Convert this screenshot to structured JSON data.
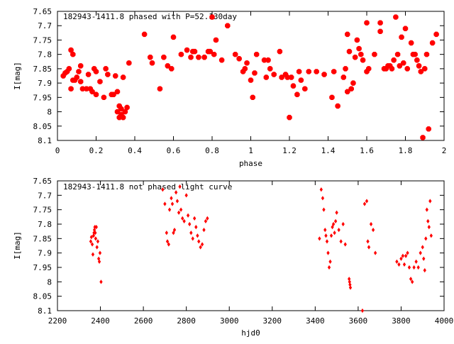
{
  "colors": {
    "points": "#ff0000",
    "axes": "#000000",
    "background": "#ffffff"
  },
  "chart_data": [
    {
      "type": "scatter",
      "title": "182943-1411.8 phased with P=52.130day",
      "xlabel": "phase",
      "ylabel": "I[mag]",
      "xlim": [
        0,
        2
      ],
      "ylim": [
        8.1,
        7.65
      ],
      "y_inverted": true,
      "grid": false,
      "marker": "star",
      "xticks": [
        "0",
        "0.2",
        "0.4",
        "0.6",
        "0.8",
        "1",
        "1.2",
        "1.4",
        "1.6",
        "1.8",
        "2"
      ],
      "yticks": [
        "7.65",
        "7.7",
        "7.75",
        "7.8",
        "7.85",
        "7.9",
        "7.95",
        "8",
        "8.05",
        "8.1"
      ],
      "series": [
        {
          "x": [
            0.03,
            0.04,
            0.05,
            0.06,
            0.07,
            0.07,
            0.08,
            0.08,
            0.09,
            0.1,
            0.11,
            0.12,
            0.12,
            0.13,
            0.15,
            0.16,
            0.17,
            0.18,
            0.19,
            0.2,
            0.2,
            0.22,
            0.24,
            0.25,
            0.26,
            0.28,
            0.29,
            0.3,
            0.31,
            0.31,
            0.32,
            0.32,
            0.33,
            0.33,
            0.34,
            0.34,
            0.35,
            0.36,
            0.37,
            0.45,
            0.48,
            0.49,
            0.53,
            0.55,
            0.57,
            0.59,
            0.6,
            0.64,
            0.67,
            0.69,
            0.7,
            0.71,
            0.73,
            0.76,
            0.78,
            0.79,
            0.8,
            0.81,
            0.82,
            0.85,
            0.88,
            0.92,
            0.94,
            0.96,
            0.97,
            0.98,
            1.0,
            1.01,
            1.02,
            1.03,
            1.07,
            1.08,
            1.09,
            1.1,
            1.12,
            1.15,
            1.16,
            1.18,
            1.19,
            1.2,
            1.21,
            1.22,
            1.24,
            1.25,
            1.26,
            1.28,
            1.3,
            1.34,
            1.38,
            1.42,
            1.43,
            1.45,
            1.48,
            1.49,
            1.5,
            1.5,
            1.51,
            1.52,
            1.53,
            1.54,
            1.55,
            1.56,
            1.57,
            1.58,
            1.6,
            1.6,
            1.61,
            1.64,
            1.67,
            1.67,
            1.69,
            1.7,
            1.71,
            1.72,
            1.73,
            1.74,
            1.75,
            1.76,
            1.77,
            1.78,
            1.79,
            1.8,
            1.81,
            1.83,
            1.84,
            1.85,
            1.86,
            1.87,
            1.88,
            1.89,
            1.9,
            1.91,
            1.92,
            1.94,
            1.96
          ],
          "y": [
            7.875,
            7.865,
            7.86,
            7.85,
            7.92,
            7.785,
            7.8,
            7.89,
            7.89,
            7.88,
            7.86,
            7.84,
            7.895,
            7.92,
            7.92,
            7.87,
            7.92,
            7.93,
            7.85,
            7.86,
            7.94,
            7.895,
            7.95,
            7.85,
            7.87,
            7.94,
            7.94,
            7.875,
            7.93,
            8.0,
            7.98,
            8.02,
            7.99,
            8.01,
            7.88,
            8.02,
            8.0,
            7.985,
            7.83,
            7.73,
            7.81,
            7.83,
            7.92,
            7.81,
            7.84,
            7.85,
            7.74,
            7.8,
            7.785,
            7.81,
            7.79,
            7.79,
            7.81,
            7.81,
            7.79,
            7.79,
            7.67,
            7.8,
            7.75,
            7.82,
            7.7,
            7.8,
            7.815,
            7.86,
            7.85,
            7.83,
            7.89,
            7.95,
            7.865,
            7.8,
            7.82,
            7.88,
            7.82,
            7.85,
            7.87,
            7.79,
            7.88,
            7.87,
            7.88,
            8.02,
            7.88,
            7.91,
            7.94,
            7.86,
            7.89,
            7.92,
            7.86,
            7.86,
            7.87,
            7.95,
            7.86,
            7.98,
            7.88,
            7.85,
            7.93,
            7.73,
            7.79,
            7.92,
            7.9,
            7.81,
            7.75,
            7.78,
            7.8,
            7.82,
            7.69,
            7.86,
            7.85,
            7.8,
            7.72,
            7.69,
            7.85,
            7.85,
            7.84,
            7.84,
            7.85,
            7.82,
            7.67,
            7.8,
            7.84,
            7.74,
            7.83,
            7.71,
            7.85,
            7.76,
            7.8,
            7.8,
            7.82,
            7.84,
            7.86,
            8.09,
            7.85,
            7.8,
            8.06,
            7.76,
            7.73
          ]
        }
      ]
    },
    {
      "type": "scatter",
      "title": "182943-1411.8 not phased light curve",
      "xlabel": "hjd0",
      "ylabel": "I[mag]",
      "xlim": [
        2200,
        4000
      ],
      "ylim": [
        8.1,
        7.65
      ],
      "y_inverted": true,
      "grid": false,
      "marker": "diamond",
      "xticks": [
        "2200",
        "2400",
        "2600",
        "2800",
        "3000",
        "3200",
        "3400",
        "3600",
        "3800",
        "4000"
      ],
      "yticks": [
        "7.65",
        "7.7",
        "7.75",
        "7.8",
        "7.85",
        "7.9",
        "7.95",
        "8",
        "8.05",
        "8.1"
      ],
      "series": [
        {
          "x": [
            2355,
            2358,
            2362,
            2365,
            2368,
            2370,
            2372,
            2374,
            2376,
            2378,
            2381,
            2384,
            2388,
            2392,
            2395,
            2398,
            2403,
            2690,
            2700,
            2708,
            2712,
            2718,
            2722,
            2730,
            2735,
            2740,
            2745,
            2752,
            2758,
            2765,
            2770,
            2775,
            2782,
            2790,
            2800,
            2808,
            2815,
            2822,
            2830,
            2838,
            2845,
            2852,
            2858,
            2866,
            2874,
            2882,
            2890,
            2898,
            3420,
            3428,
            3435,
            3440,
            3446,
            3450,
            3455,
            3460,
            3465,
            3470,
            3475,
            3480,
            3485,
            3490,
            3495,
            3500,
            3510,
            3520,
            3530,
            3540,
            3558,
            3560,
            3562,
            3564,
            3620,
            3630,
            3640,
            3645,
            3650,
            3660,
            3670,
            3680,
            3780,
            3790,
            3800,
            3808,
            3815,
            3822,
            3830,
            3838,
            3845,
            3852,
            3860,
            3870,
            3880,
            3890,
            3900,
            3905,
            3910,
            3915,
            3920,
            3925,
            3930,
            3935,
            3940
          ],
          "y": [
            7.86,
            7.845,
            7.87,
            7.905,
            7.84,
            7.83,
            7.82,
            7.81,
            7.83,
            7.85,
            7.81,
            7.88,
            7.86,
            7.92,
            7.93,
            7.9,
            8.0,
            7.68,
            7.73,
            7.83,
            7.86,
            7.87,
            7.75,
            7.71,
            7.73,
            7.83,
            7.82,
            7.69,
            7.72,
            7.76,
            7.67,
            7.75,
            7.78,
            7.79,
            7.7,
            7.77,
            7.8,
            7.83,
            7.85,
            7.78,
            7.81,
            7.84,
            7.86,
            7.88,
            7.87,
            7.82,
            7.79,
            7.78,
            7.85,
            7.68,
            7.71,
            7.75,
            7.82,
            7.84,
            7.86,
            7.9,
            7.95,
            7.93,
            7.84,
            7.81,
            7.8,
            7.83,
            7.79,
            7.76,
            7.82,
            7.86,
            7.8,
            7.87,
            7.99,
            8.0,
            8.01,
            8.02,
            8.1,
            7.73,
            7.72,
            7.86,
            7.88,
            7.8,
            7.82,
            7.9,
            7.93,
            7.94,
            7.92,
            7.91,
            7.94,
            7.91,
            7.9,
            7.95,
            7.99,
            8.0,
            7.95,
            7.93,
            7.95,
            7.9,
            7.88,
            7.92,
            7.96,
            7.85,
            7.75,
            7.79,
            7.81,
            7.72,
            7.84
          ]
        }
      ]
    }
  ]
}
